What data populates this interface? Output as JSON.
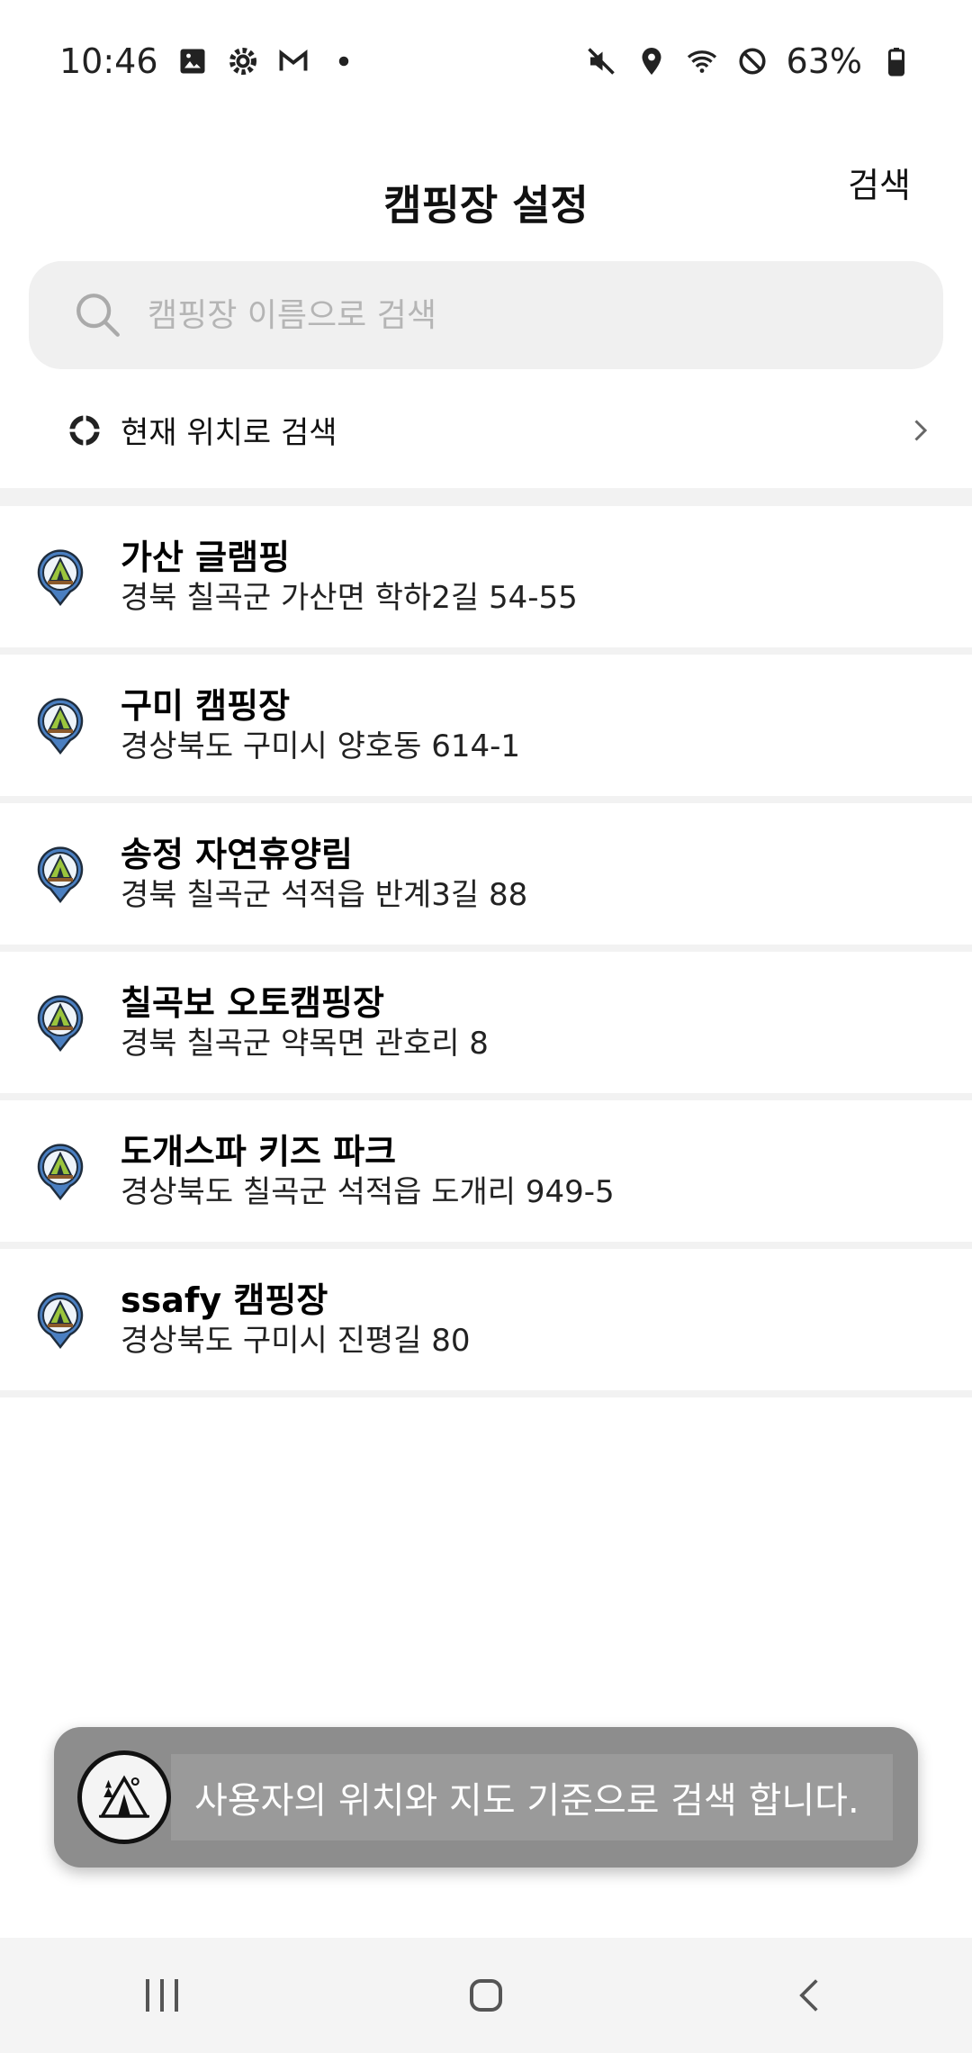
{
  "status_bar": {
    "time": "10:46",
    "battery": "63%",
    "left_icons": [
      "image-icon",
      "gear-icon",
      "gmail-icon",
      "dot-icon"
    ],
    "right_icons": [
      "mute-icon",
      "location-icon",
      "wifi-icon",
      "block-icon",
      "battery-icon"
    ]
  },
  "header": {
    "title": "캠핑장 설정",
    "search_action": "검색"
  },
  "search": {
    "placeholder": "캠핑장 이름으로 검색",
    "value": ""
  },
  "location_search": {
    "label": "현재 위치로 검색"
  },
  "campsites": [
    {
      "name": "가산 글램핑",
      "address": "경북 칠곡군 가산면 학하2길 54-55"
    },
    {
      "name": "구미 캠핑장",
      "address": "경상북도 구미시 양호동 614-1"
    },
    {
      "name": "송정 자연휴양림",
      "address": "경북 칠곡군 석적읍 반계3길 88"
    },
    {
      "name": "칠곡보 오토캠핑장",
      "address": "경북 칠곡군 약목면 관호리 8"
    },
    {
      "name": "도개스파 키즈 파크",
      "address": "경상북도 칠곡군 석적읍 도개리 949-5"
    },
    {
      "name": "ssafy 캠핑장",
      "address": "경상북도 구미시 진평길 80"
    }
  ],
  "toast": {
    "message": "사용자의 위치와 지도 기준으로 검색 합니다."
  },
  "colors": {
    "pin_blue": "#4a7fc1",
    "tent_green": "#9bc53d",
    "toast_bg": "#8d8d8d"
  }
}
